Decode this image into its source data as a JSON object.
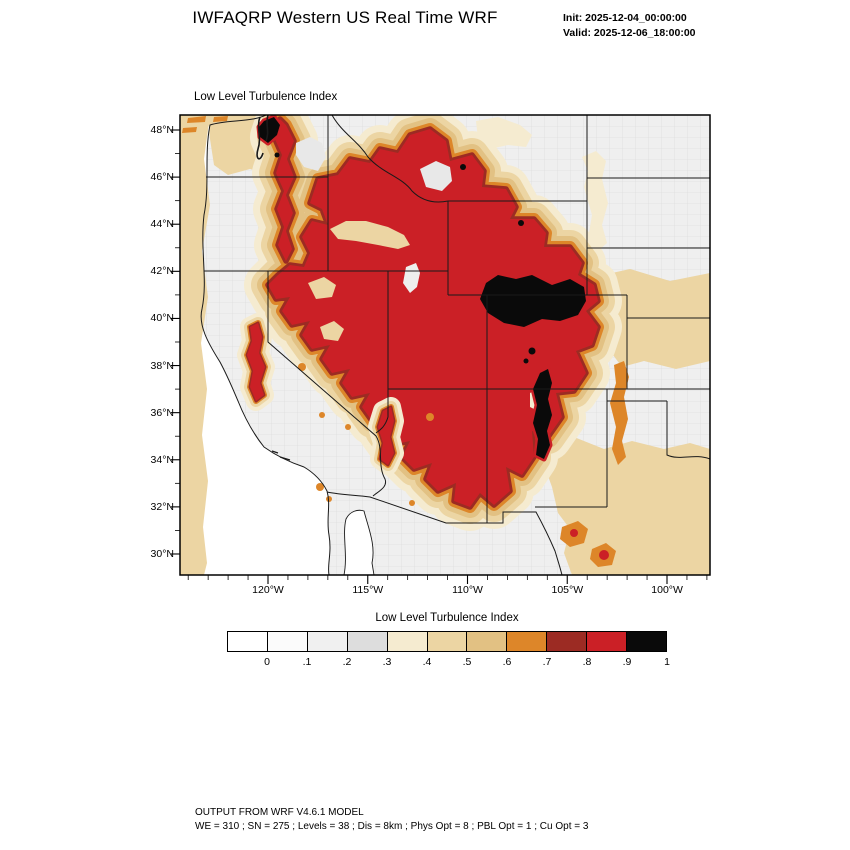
{
  "header": {
    "title": "IWFAQRP Western US Real Time WRF",
    "init_label": "Init: 2025-12-04_00:00:00",
    "valid_label": "Valid: 2025-12-06_18:00:00"
  },
  "map": {
    "title": "Low Level Turbulence Index",
    "y_ticks": [
      "48°N",
      "46°N",
      "44°N",
      "42°N",
      "40°N",
      "38°N",
      "36°N",
      "34°N",
      "32°N",
      "30°N"
    ],
    "x_ticks": [
      "120°W",
      "115°W",
      "110°W",
      "105°W",
      "100°W"
    ]
  },
  "colorbar": {
    "title": "Low Level Turbulence Index",
    "labels": [
      "0",
      ".1",
      ".2",
      ".3",
      ".4",
      ".5",
      ".6",
      ".7",
      ".8",
      ".9",
      "1"
    ],
    "colors": [
      "#ffffff",
      "#fbfbfb",
      "#f0f0f0",
      "#dddddd",
      "#f5ebd0",
      "#ecd5a3",
      "#e2c183",
      "#dd8629",
      "#9c2b23",
      "#cb2026",
      "#0a0a0a"
    ]
  },
  "footer": {
    "line1": "OUTPUT FROM WRF V4.6.1 MODEL",
    "line2": "WE = 310 ; SN = 275 ; Levels = 38 ; Dis = 8km ; Phys Opt = 8 ; PBL Opt = 1 ; Cu Opt = 3"
  },
  "palette": {
    "land": "#efefef",
    "ocean": "#ffffff",
    "county_line": "#d7d7d7",
    "state_line": "#1a1a1a",
    "level_pale": "#f5ebd0",
    "level_tan": "#ecd5a3",
    "level_dark_tan": "#e2c183",
    "level_orange": "#dd8629",
    "level_maroon": "#9c2b23",
    "level_red": "#cb2026",
    "level_black": "#0a0a0a",
    "hole_gray": "#e8e8e8",
    "lake": "#eef0ee"
  },
  "chart_data": {
    "type": "heatmap",
    "title": "Low Level Turbulence Index",
    "model_header": "IWFAQRP Western US Real Time WRF",
    "init_time": "2025-12-04_00:00:00",
    "valid_time": "2025-12-06_18:00:00",
    "x_ticks": [
      "120°W",
      "115°W",
      "110°W",
      "105°W",
      "100°W"
    ],
    "y_ticks": [
      "30°N",
      "32°N",
      "34°N",
      "36°N",
      "38°N",
      "40°N",
      "42°N",
      "44°N",
      "46°N",
      "48°N"
    ],
    "geo_extent": {
      "lon_range": [
        "~124.4°W",
        "~97.8°W"
      ],
      "lat_range": [
        "~29°N",
        "~48.6°N"
      ]
    },
    "colorbar_levels": [
      0,
      0.1,
      0.2,
      0.3,
      0.4,
      0.5,
      0.6,
      0.7,
      0.8,
      0.9,
      1
    ],
    "colorbar_colors": [
      "#ffffff",
      "#fbfbfb",
      "#f0f0f0",
      "#dddddd",
      "#f5ebd0",
      "#ecd5a3",
      "#e2c183",
      "#dd8629",
      "#9c2b23",
      "#cb2026",
      "#0a0a0a"
    ],
    "legend_position": "bottom",
    "grid": "state and county boundaries over western United States",
    "regions": [
      {
        "index": "0.7-0.9 (red)",
        "area": "Cascades (WA/OR), NE Oregon, Idaho, W Montana, Wyoming, N Nevada ranges, Utah, Colorado Rockies, N New Mexico, Mogollon Rim (AZ), Sierra Nevada (CA)"
      },
      {
        "index": ">0.9 (black)",
        "area": "SE Wyoming / NE Colorado / SW Nebraska plains blob; Sangre de Cristo corridor (S Colorado - N New Mexico); N Washington Cascades specks"
      },
      {
        "index": "0.3-0.6 (tan)",
        "area": "Pacific coastal waters along western map edge, W Nebraska, S New Mexico into W Texas, N Montana and W Dakotas patches"
      },
      {
        "index": "0-0.2 (white/gray)",
        "area": "California Central Valley, Columbia Basin, E Montana, Dakotas, Kansas, Oklahoma, Mexico"
      }
    ]
  }
}
